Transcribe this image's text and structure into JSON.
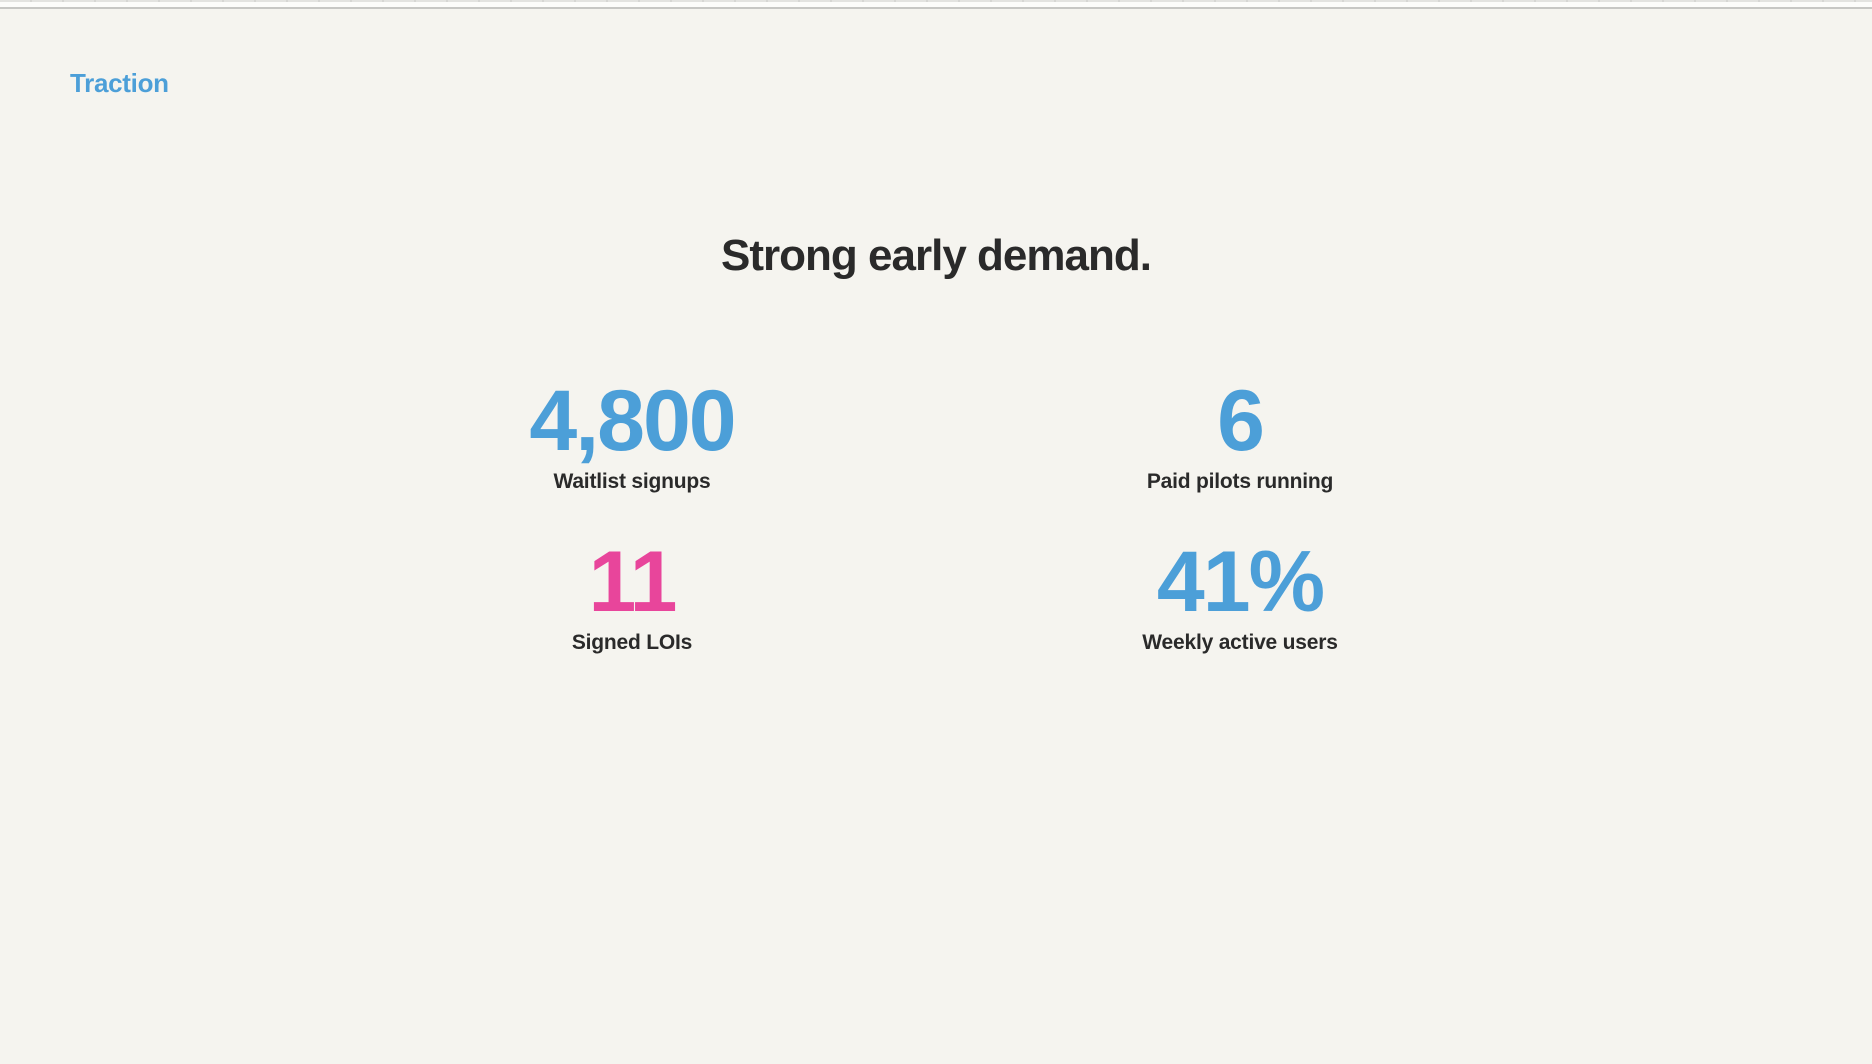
{
  "page": {
    "background": "#f5f4ef",
    "chrome_background": "#fcfcfa",
    "chrome_line": "#c7c7c4",
    "accent_blue": "#4c9fd8",
    "accent_pink": "#e8459b",
    "text_dark": "#2a2a2a"
  },
  "slide": {
    "section_label": "Traction",
    "headline": "Strong early demand.",
    "stats": [
      {
        "value": "4,800",
        "label": "Waitlist signups",
        "color": "#4c9fd8"
      },
      {
        "value": "6",
        "label": "Paid pilots running",
        "color": "#4c9fd8"
      },
      {
        "value": "11",
        "label": "Signed LOIs",
        "color": "#e8459b"
      },
      {
        "value": "41%",
        "label": "Weekly active users",
        "color": "#4c9fd8"
      }
    ]
  }
}
